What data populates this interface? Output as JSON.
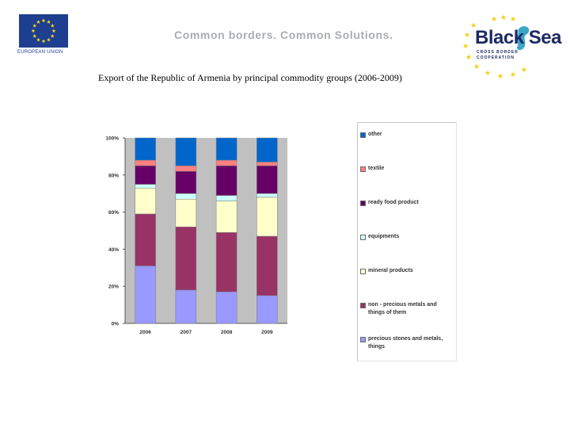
{
  "header": {
    "eu_caption": "EUROPEAN UNION",
    "tagline": "Common borders. Common Solutions.",
    "programme_name": "Black Sea",
    "programme_sub_line1": "CROSS BORDER",
    "programme_sub_line2": "COOPERATION"
  },
  "page_title": "Export of the Republic of Armenia by principal commodity groups (2006-2009)",
  "colors": {
    "eu_blue": "#1e3f8f",
    "eu_star": "#f4d21e",
    "tagline_grey": "#a9acb0",
    "blacksea_navy": "#1d2a63",
    "blacksea_teal": "#3aa7c9",
    "plot_background": "#c0c0c0",
    "axis_text": "#333333"
  },
  "icons": {
    "eu_flag": "eu-flag-icon",
    "seahorse": "seahorse-icon",
    "stars": "star-icon"
  },
  "chart_data": {
    "type": "bar",
    "stacked": true,
    "percent": true,
    "title": "",
    "xlabel": "",
    "ylabel": "",
    "categories": [
      "2006",
      "2007",
      "2008",
      "2009"
    ],
    "y_ticks": [
      "0%",
      "20%",
      "40%",
      "60%",
      "80%",
      "100%"
    ],
    "ylim": [
      0,
      100
    ],
    "grid": false,
    "legend_position": "right",
    "series": [
      {
        "name": "precious stones and metals, things",
        "color": "#9999ff",
        "values": [
          31,
          18,
          17,
          15
        ]
      },
      {
        "name": "non - precious metals and things of them",
        "color": "#993366",
        "values": [
          28,
          34,
          32,
          32
        ]
      },
      {
        "name": "mineral products",
        "color": "#ffffcc",
        "values": [
          14,
          15,
          17,
          21
        ]
      },
      {
        "name": "equipments",
        "color": "#ccffff",
        "values": [
          2,
          3,
          3,
          2
        ]
      },
      {
        "name": "ready food product",
        "color": "#660066",
        "values": [
          10,
          12,
          16,
          15
        ]
      },
      {
        "name": "textile",
        "color": "#ff8080",
        "values": [
          3,
          3,
          3,
          2
        ]
      },
      {
        "name": "other",
        "color": "#0066cc",
        "values": [
          12,
          15,
          12,
          13
        ]
      }
    ],
    "legend_order": [
      "other",
      "textile",
      "ready food product",
      "equipments",
      "mineral products",
      "non - precious metals and things of them",
      "precious stones and metals, things"
    ]
  }
}
